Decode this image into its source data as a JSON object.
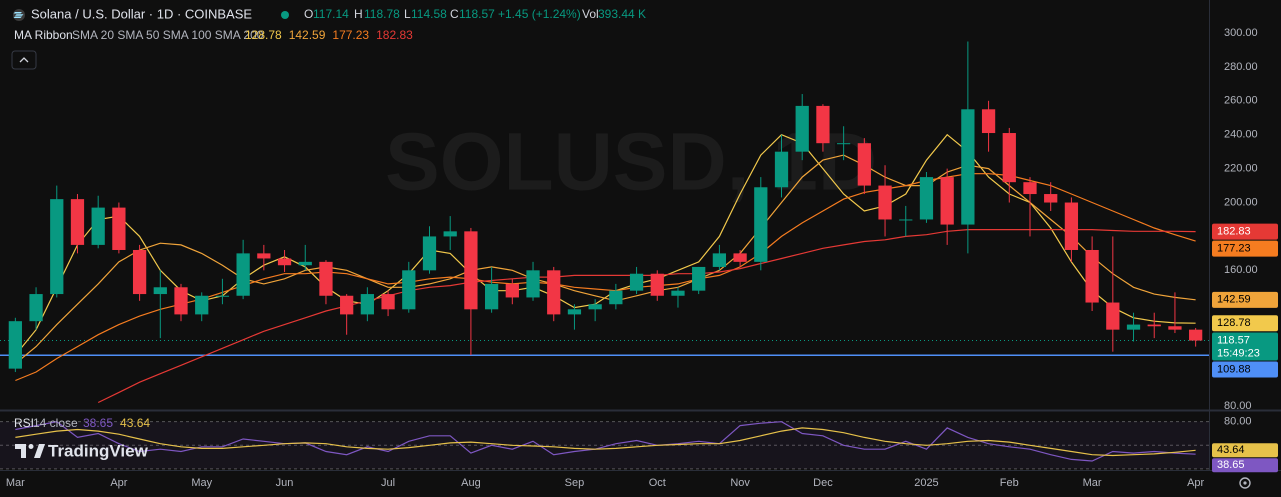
{
  "chart_data": {
    "type": "candlestick",
    "title": "Solana / U.S. Dollar · 1D · COINBASE",
    "watermark": "SOLUSD, 1D",
    "legend": {
      "open_label": "O",
      "open": 117.14,
      "high_label": "H",
      "high": 118.78,
      "low_label": "L",
      "low": 114.58,
      "close_label": "C",
      "close": 118.57,
      "change": "+1.45 (+1.24%)",
      "volume_label": "Vol",
      "volume": "393.44 K"
    },
    "indicator_title": "MA Ribbon",
    "indicator_params": "SMA 20 SMA 50 SMA 100 SMA 200",
    "logo": "TradingView",
    "countdown": "15:49:23",
    "up_color": "#089981",
    "down_color": "#f23645",
    "categories": [
      "Mar",
      null,
      null,
      null,
      null,
      "Apr",
      null,
      null,
      null,
      "May",
      null,
      null,
      null,
      "Jun",
      null,
      null,
      null,
      null,
      "Jul",
      null,
      null,
      null,
      "Aug",
      null,
      null,
      null,
      null,
      "Sep",
      null,
      null,
      null,
      "Oct",
      null,
      null,
      null,
      "Nov",
      null,
      null,
      null,
      "Dec",
      null,
      null,
      null,
      null,
      "2025",
      null,
      null,
      null,
      "Feb",
      null,
      null,
      null,
      "Mar",
      null,
      null,
      null,
      null,
      "Apr"
    ],
    "open": [
      102,
      130,
      146,
      202,
      175,
      197,
      172,
      146,
      150,
      134,
      145,
      145,
      170,
      167,
      163,
      165,
      145,
      134,
      146,
      137,
      160,
      180,
      183,
      137,
      152,
      144,
      160,
      134,
      137,
      140,
      148,
      158,
      145,
      148,
      162,
      170,
      165,
      209,
      230,
      257,
      235,
      235,
      210,
      190,
      190,
      215,
      187,
      255,
      241,
      212,
      205,
      200,
      172,
      141,
      125,
      128,
      127,
      125
    ],
    "high": [
      132,
      150,
      210,
      205,
      204,
      200,
      175,
      160,
      152,
      147,
      155,
      178,
      175,
      172,
      175,
      166,
      146,
      150,
      148,
      165,
      186,
      192,
      185,
      162,
      155,
      165,
      162,
      140,
      143,
      152,
      162,
      160,
      150,
      162,
      175,
      172,
      215,
      240,
      264,
      258,
      245,
      238,
      222,
      198,
      218,
      220,
      295,
      260,
      244,
      215,
      212,
      203,
      180,
      180,
      135,
      135,
      147,
      126
    ],
    "low": [
      100,
      125,
      144,
      170,
      173,
      170,
      142,
      120,
      130,
      130,
      140,
      143,
      160,
      159,
      160,
      140,
      122,
      130,
      133,
      135,
      158,
      172,
      110,
      135,
      140,
      142,
      130,
      125,
      130,
      137,
      146,
      142,
      138,
      146,
      160,
      162,
      160,
      203,
      225,
      230,
      225,
      205,
      180,
      180,
      188,
      175,
      170,
      230,
      200,
      180,
      195,
      165,
      136,
      112,
      118,
      120,
      123,
      115
    ],
    "close": [
      130,
      146,
      202,
      175,
      197,
      172,
      146,
      150,
      134,
      145,
      145,
      170,
      167,
      163,
      165,
      145,
      134,
      146,
      137,
      160,
      180,
      183,
      137,
      152,
      144,
      160,
      134,
      137,
      140,
      148,
      158,
      145,
      148,
      162,
      170,
      165,
      209,
      230,
      257,
      235,
      235,
      210,
      190,
      190,
      215,
      187,
      255,
      241,
      212,
      205,
      200,
      172,
      141,
      125,
      128,
      127,
      125,
      118.57
    ],
    "series": [
      {
        "name": "SMA 20",
        "color": "#f2c94c",
        "tag_text": "#000000",
        "values": [
          110,
          125,
          150,
          175,
          190,
          192,
          180,
          160,
          148,
          142,
          145,
          155,
          163,
          168,
          162,
          150,
          142,
          140,
          148,
          158,
          172,
          170,
          158,
          148,
          148,
          150,
          145,
          138,
          140,
          148,
          152,
          155,
          160,
          165,
          180,
          205,
          228,
          240,
          235,
          220,
          205,
          195,
          198,
          205,
          225,
          240,
          230,
          215,
          205,
          200,
          185,
          165,
          148,
          138,
          132,
          130,
          129,
          128.78
        ]
      },
      {
        "name": "SMA 50",
        "color": "#f0a43a",
        "tag_text": "#000000",
        "values": [
          105,
          115,
          128,
          140,
          152,
          165,
          172,
          176,
          175,
          170,
          163,
          155,
          152,
          155,
          160,
          162,
          160,
          155,
          150,
          150,
          152,
          155,
          160,
          162,
          160,
          155,
          152,
          148,
          145,
          142,
          145,
          148,
          150,
          155,
          160,
          170,
          185,
          200,
          215,
          225,
          228,
          222,
          215,
          210,
          210,
          218,
          222,
          220,
          210,
          200,
          190,
          180,
          168,
          158,
          150,
          146,
          144,
          142.59
        ]
      },
      {
        "name": "SMA 100",
        "color": "#f57c20",
        "tag_text": "#000000",
        "values": [
          95,
          100,
          108,
          115,
          122,
          128,
          133,
          137,
          140,
          143,
          147,
          151,
          155,
          158,
          158,
          159,
          158,
          155,
          152,
          153,
          155,
          156,
          155,
          153,
          152,
          153,
          152,
          150,
          149,
          148,
          150,
          151,
          152,
          155,
          157,
          162,
          170,
          180,
          188,
          195,
          202,
          206,
          208,
          210,
          213,
          215,
          217,
          217,
          216,
          213,
          210,
          205,
          200,
          195,
          190,
          185,
          181,
          177.23
        ]
      },
      {
        "name": "SMA 200",
        "color": "#e53935",
        "tag_text": "#ffffff",
        "values": [
          null,
          null,
          null,
          null,
          82,
          88,
          94,
          99,
          104,
          109,
          114,
          119,
          124,
          128,
          132,
          136,
          139,
          142,
          145,
          148,
          150,
          151,
          153,
          154,
          155,
          156,
          156,
          157,
          157,
          157,
          157,
          157,
          158,
          158,
          159,
          161,
          164,
          167,
          170,
          173,
          175,
          177,
          178,
          180,
          181,
          183,
          184,
          184,
          184,
          184,
          184,
          184,
          184,
          183.5,
          183,
          183,
          183,
          182.83
        ]
      }
    ],
    "hline": {
      "value": 109.88,
      "color": "#4f8ff7"
    },
    "ylim": [
      77.6,
      306.5
    ],
    "yticks": [
      {
        "value": 80,
        "label": "80.00"
      },
      {
        "value": 160,
        "label": "160.00"
      },
      {
        "value": 200,
        "label": "200.00"
      },
      {
        "value": 220,
        "label": "220.00"
      },
      {
        "value": 240,
        "label": "240.00"
      },
      {
        "value": 260,
        "label": "260.00"
      },
      {
        "value": 280,
        "label": "280.00"
      },
      {
        "value": 300,
        "label": "300.00"
      }
    ],
    "grid": false,
    "rsi": {
      "title": "RSI",
      "params": "14 close",
      "ylim": [
        16,
        91
      ],
      "yticks": [
        {
          "value": 80,
          "label": "80.00"
        }
      ],
      "bands": [
        80,
        50,
        20
      ],
      "series": [
        {
          "name": "RSI",
          "color": "#7e57c2",
          "tag_text": "#ffffff",
          "values": [
            70,
            75,
            80,
            60,
            65,
            52,
            42,
            45,
            42,
            48,
            48,
            58,
            55,
            52,
            53,
            42,
            38,
            48,
            42,
            55,
            62,
            62,
            40,
            50,
            45,
            55,
            38,
            42,
            45,
            52,
            56,
            50,
            52,
            55,
            52,
            75,
            78,
            80,
            65,
            62,
            50,
            45,
            45,
            55,
            45,
            72,
            60,
            52,
            48,
            45,
            38,
            32,
            30,
            42,
            40,
            42,
            40,
            38.65
          ]
        },
        {
          "name": "RSI MA",
          "color": "#e6c14a",
          "tag_text": "#000000",
          "values": [
            60,
            64,
            68,
            70,
            68,
            64,
            58,
            52,
            48,
            46,
            46,
            48,
            50,
            52,
            53,
            52,
            48,
            46,
            45,
            47,
            50,
            53,
            54,
            52,
            50,
            49,
            48,
            46,
            45,
            46,
            48,
            50,
            51,
            52,
            52,
            56,
            62,
            68,
            72,
            70,
            66,
            60,
            55,
            52,
            50,
            52,
            55,
            56,
            54,
            50,
            46,
            42,
            38,
            37,
            38,
            39,
            41,
            43.64
          ]
        }
      ]
    }
  }
}
